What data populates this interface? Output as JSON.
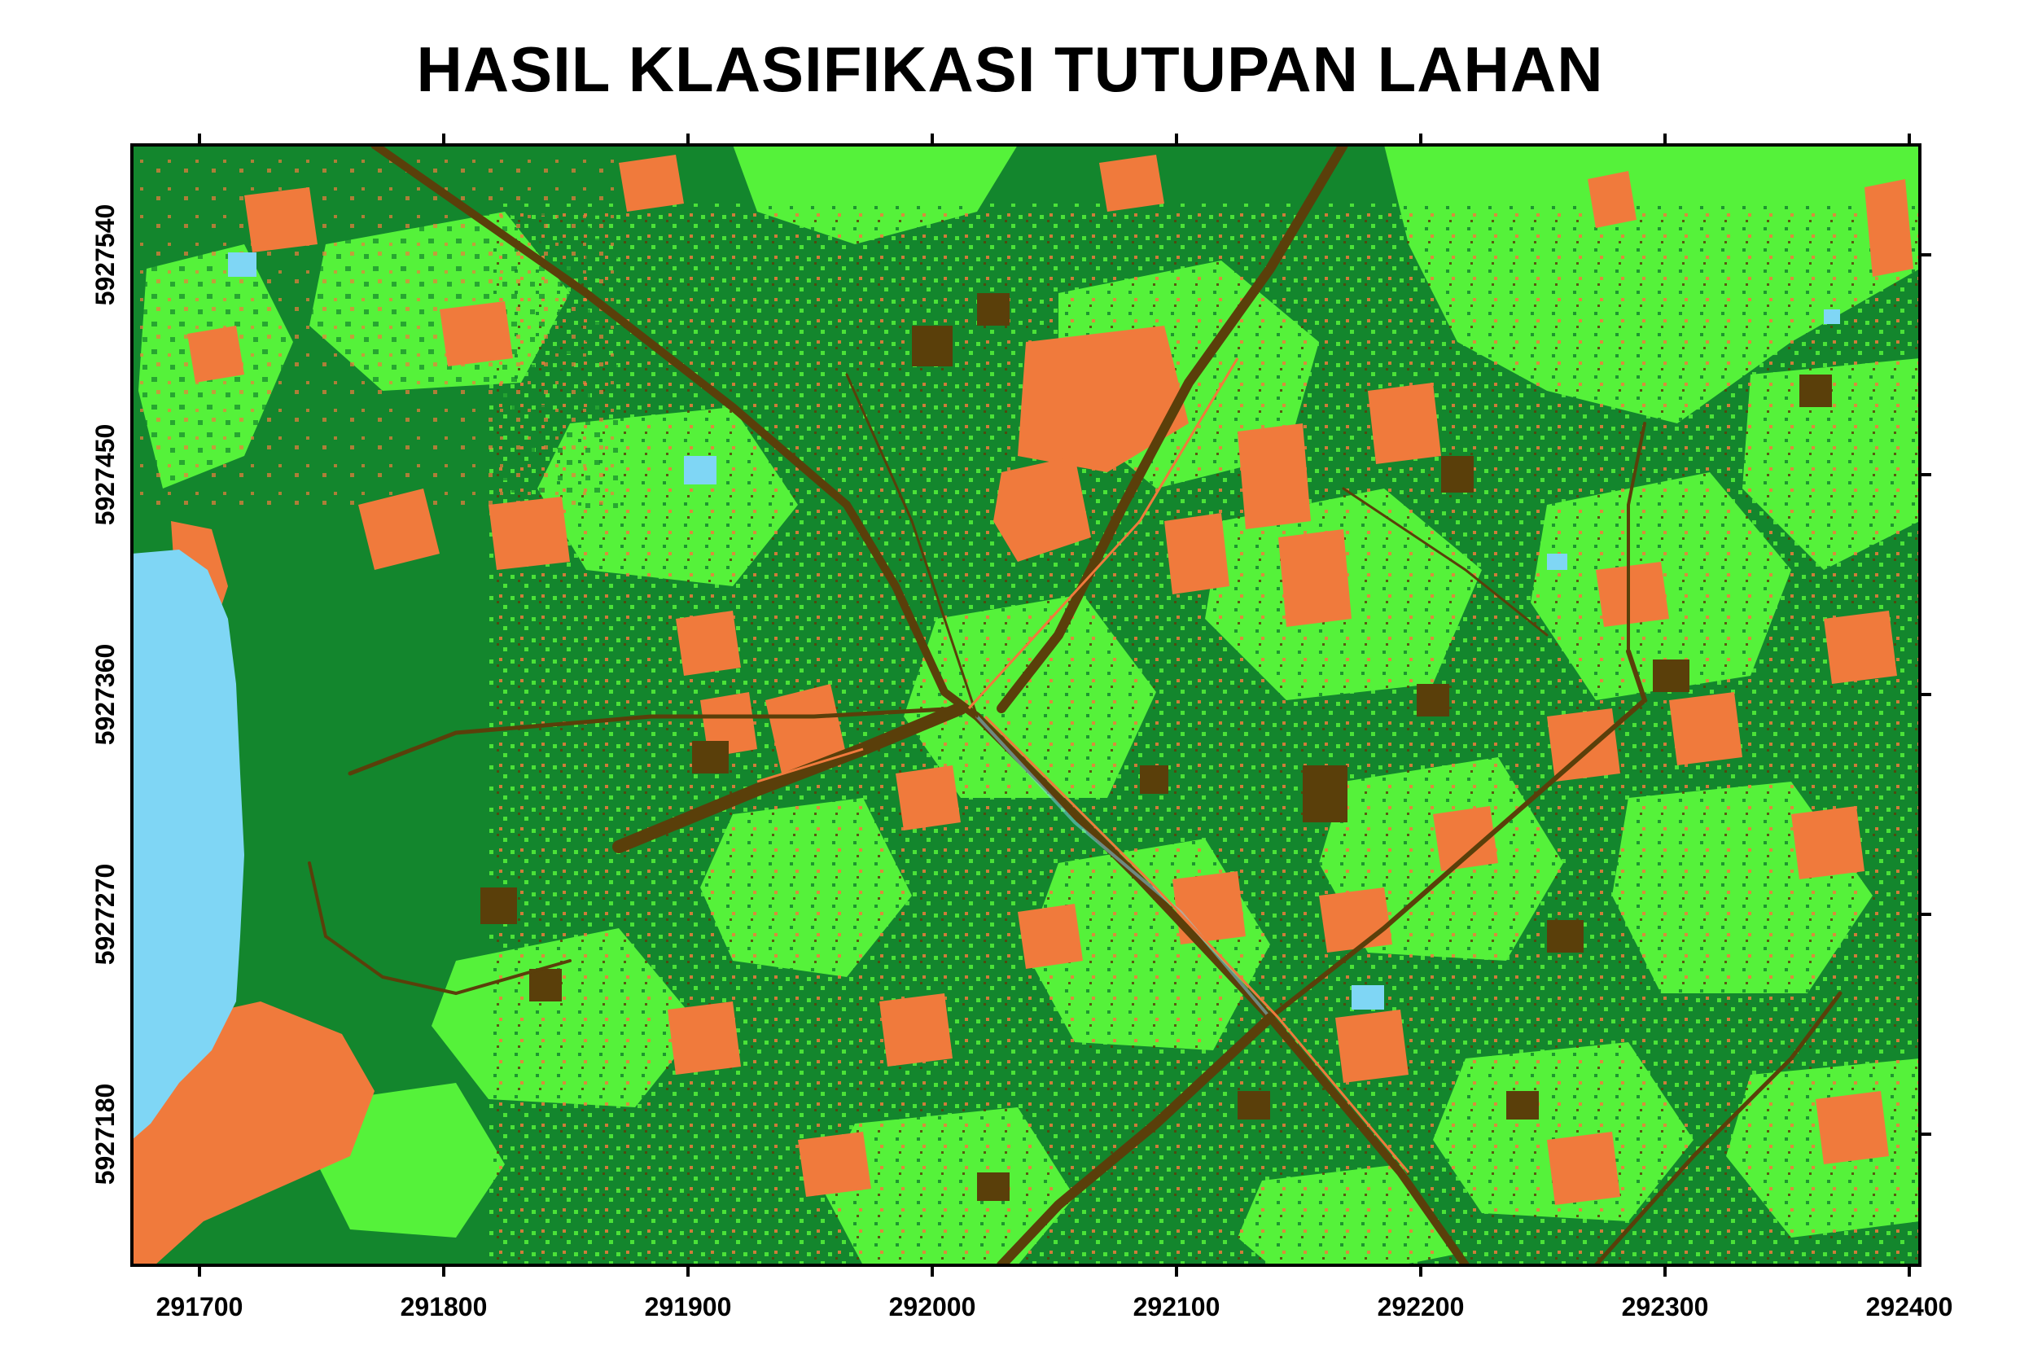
{
  "title": "HASIL KLASIFIKASI TUTUPAN LAHAN",
  "map": {
    "x_ticks": [
      "291700",
      "291800",
      "291900",
      "292000",
      "292100",
      "292200",
      "292300",
      "292400"
    ],
    "y_ticks": [
      "5927540",
      "5927450",
      "5927360",
      "5927270",
      "5927180"
    ],
    "colors": {
      "dense_vegetation": "#13862d",
      "light_vegetation": "#55f23a",
      "built_up": "#f07a3c",
      "road": "#5a3f0a",
      "water": "#7fd6f5",
      "frame": "#000000"
    }
  }
}
